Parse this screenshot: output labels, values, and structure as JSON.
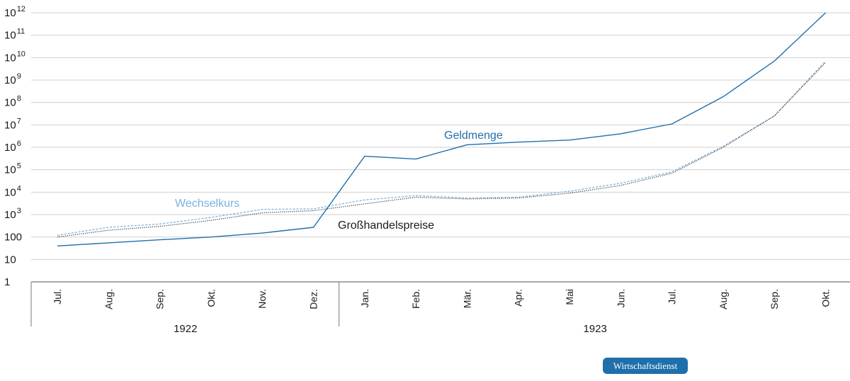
{
  "chart_data": {
    "type": "line",
    "title": "",
    "xlabel": "",
    "ylabel": "",
    "y_scale": "log10",
    "ylim": [
      1,
      1000000000000
    ],
    "y_ticks": [
      {
        "base": "1",
        "exp": ""
      },
      {
        "base": "10",
        "exp": ""
      },
      {
        "base": "100",
        "exp": ""
      },
      {
        "base": "10",
        "exp": "3"
      },
      {
        "base": "10",
        "exp": "4"
      },
      {
        "base": "10",
        "exp": "5"
      },
      {
        "base": "10",
        "exp": "6"
      },
      {
        "base": "10",
        "exp": "7"
      },
      {
        "base": "10",
        "exp": "8"
      },
      {
        "base": "10",
        "exp": "9"
      },
      {
        "base": "10",
        "exp": "10"
      },
      {
        "base": "10",
        "exp": "11"
      },
      {
        "base": "10",
        "exp": "12"
      }
    ],
    "categories": [
      "Jul.",
      "Aug.",
      "Sep.",
      "Okt.",
      "Nov.",
      "Dez.",
      "Jan.",
      "Feb.",
      "Mär.",
      "Apr.",
      "Mai",
      "Jun.",
      "Jul.",
      "Aug.",
      "Sep.",
      "Okt."
    ],
    "year_groups": [
      {
        "label": "1922",
        "count": 6
      },
      {
        "label": "1923",
        "count": 10
      }
    ],
    "series": [
      {
        "name": "Geldmenge",
        "color": "#1f6fab",
        "style": "solid",
        "values": [
          40,
          55,
          75,
          100,
          150,
          270,
          400000,
          300000,
          1300000,
          1700000,
          2100000,
          4000000,
          11000000,
          180000000,
          7000000000,
          1000000000000
        ]
      },
      {
        "name": "Wechselkurs",
        "color": "#7fb2dc",
        "style": "dashed",
        "values": [
          120,
          270,
          380,
          750,
          1700,
          1800,
          4500,
          7000,
          5500,
          6000,
          11000,
          25000,
          80000,
          1100000,
          25000000,
          7000000000
        ]
      },
      {
        "name": "Großhandelspreise",
        "color": "#444444",
        "style": "dotted",
        "values": [
          100,
          200,
          300,
          550,
          1200,
          1500,
          3000,
          6000,
          5000,
          5500,
          9000,
          20000,
          70000,
          1000000,
          25000000,
          6000000000
        ]
      }
    ],
    "annotations": [
      {
        "text": "Geldmenge",
        "series": "Geldmenge"
      },
      {
        "text": "Wechselkurs",
        "series": "Wechselkurs"
      },
      {
        "text": "Großhandelspreise",
        "series": "Großhandelspreise"
      }
    ]
  },
  "badge": {
    "label": "Wirtschaftsdienst",
    "color": "#1f6fab"
  }
}
